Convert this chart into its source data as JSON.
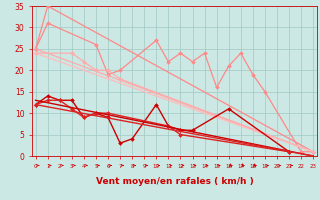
{
  "bg_color": "#cce8e4",
  "grid_color": "#a0c8c4",
  "lines": [
    {
      "x": [
        0,
        1,
        5,
        6,
        7,
        10,
        11,
        12,
        13,
        14,
        15,
        16,
        17,
        18,
        19,
        22,
        23
      ],
      "y": [
        25,
        31,
        26,
        19,
        20,
        27,
        22,
        24,
        22,
        24,
        16,
        21,
        24,
        19,
        15,
        1,
        1
      ],
      "color": "#ff8888",
      "lw": 0.9,
      "marker": true,
      "ms": 2.0
    },
    {
      "x": [
        0,
        1,
        23
      ],
      "y": [
        25,
        35,
        1
      ],
      "color": "#ff8888",
      "lw": 0.9,
      "marker": true,
      "ms": 2.0
    },
    {
      "x": [
        0,
        3,
        4,
        5,
        6,
        7,
        23
      ],
      "y": [
        24,
        24,
        22,
        20,
        20,
        18,
        1
      ],
      "color": "#ffaaaa",
      "lw": 0.9,
      "marker": true,
      "ms": 2.0
    },
    {
      "x": [
        0,
        23
      ],
      "y": [
        25,
        1
      ],
      "color": "#ffaaaa",
      "lw": 0.9,
      "marker": false,
      "ms": 0
    },
    {
      "x": [
        0,
        23
      ],
      "y": [
        24,
        1
      ],
      "color": "#ffbbbb",
      "lw": 0.9,
      "marker": false,
      "ms": 0
    },
    {
      "x": [
        0,
        1,
        2,
        3,
        4,
        5,
        6,
        7,
        8,
        10,
        11,
        12,
        13,
        16,
        21
      ],
      "y": [
        12,
        14,
        13,
        13,
        9,
        10,
        9,
        3,
        4,
        12,
        7,
        6,
        6,
        11,
        1
      ],
      "color": "#cc0000",
      "lw": 1.0,
      "marker": true,
      "ms": 2.0
    },
    {
      "x": [
        0,
        1,
        2,
        3,
        4,
        5,
        6,
        11,
        12,
        21
      ],
      "y": [
        12,
        13,
        13,
        11,
        9,
        10,
        10,
        7,
        5,
        1
      ],
      "color": "#dd2222",
      "lw": 1.0,
      "marker": true,
      "ms": 2.0
    },
    {
      "x": [
        0,
        23
      ],
      "y": [
        13,
        0
      ],
      "color": "#cc0000",
      "lw": 1.0,
      "marker": false,
      "ms": 0
    },
    {
      "x": [
        0,
        23
      ],
      "y": [
        12,
        0
      ],
      "color": "#dd2222",
      "lw": 1.0,
      "marker": false,
      "ms": 0
    }
  ],
  "xlim": [
    -0.3,
    23.3
  ],
  "ylim": [
    0,
    35
  ],
  "yticks": [
    0,
    5,
    10,
    15,
    20,
    25,
    30,
    35
  ],
  "xticks": [
    0,
    1,
    2,
    3,
    4,
    5,
    6,
    7,
    8,
    9,
    10,
    11,
    12,
    13,
    14,
    15,
    16,
    17,
    18,
    19,
    20,
    21,
    22,
    23
  ],
  "xlabel": "Vent moyen/en rafales ( km/h )",
  "xlabel_color": "#cc0000",
  "tick_color": "#cc0000"
}
